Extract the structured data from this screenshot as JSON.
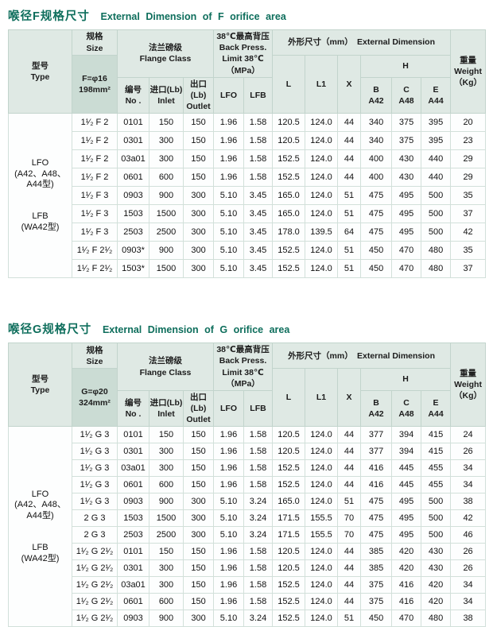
{
  "colors": {
    "title": "#0e6e5c",
    "header_bg": "#dfe9e4",
    "size_cell_bg": "#cbdcd4",
    "border": "#c2d4cc",
    "row_border": "#d2e0da"
  },
  "tables": [
    {
      "title_zh": "喉径F规格尺寸",
      "title_en": "External Dimension of F orifice area",
      "header": {
        "type": "型号\nType",
        "size": "规格\nSize",
        "size_spec": "F=φ16\n198mm²",
        "flange_class": "法兰磅级\nFlange Class",
        "no": "编号\nNo .",
        "inlet": "进口(Lb)\nInlet",
        "outlet": "出口(Lb)\nOutlet",
        "back_press": "38℃最高背压\nBack Press.\nLimit 38℃\n（MPa）",
        "lfo": "LFO",
        "lfb": "LFB",
        "ext_dim": "外形尺寸（mm）　External Dimension",
        "l": "L",
        "l1": "L1",
        "x": "X",
        "h": "H",
        "b": "B\nA42",
        "c": "C\nA48",
        "e": "E\nA44",
        "weight": "重量\nWeight\n（Kg）"
      },
      "type_groups": [
        "LFO\n(A42、A48、\nA44型)",
        "LFB\n(WA42型)"
      ],
      "rows": [
        [
          "1¹⁄₂ F 2",
          "0101",
          "150",
          "150",
          "1.96",
          "1.58",
          "120.5",
          "124.0",
          "44",
          "340",
          "375",
          "395",
          "20"
        ],
        [
          "1¹⁄₂ F 2",
          "0301",
          "300",
          "150",
          "1.96",
          "1.58",
          "120.5",
          "124.0",
          "44",
          "340",
          "375",
          "395",
          "23"
        ],
        [
          "1¹⁄₂ F 2",
          "03a01",
          "300",
          "150",
          "1.96",
          "1.58",
          "152.5",
          "124.0",
          "44",
          "400",
          "430",
          "440",
          "29"
        ],
        [
          "1¹⁄₂ F 2",
          "0601",
          "600",
          "150",
          "1.96",
          "1.58",
          "152.5",
          "124.0",
          "44",
          "400",
          "430",
          "440",
          "29"
        ],
        [
          "1¹⁄₂ F 3",
          "0903",
          "900",
          "300",
          "5.10",
          "3.45",
          "165.0",
          "124.0",
          "51",
          "475",
          "495",
          "500",
          "35"
        ],
        [
          "1¹⁄₂ F 3",
          "1503",
          "1500",
          "300",
          "5.10",
          "3.45",
          "165.0",
          "124.0",
          "51",
          "475",
          "495",
          "500",
          "37"
        ],
        [
          "1¹⁄₂ F 3",
          "2503",
          "2500",
          "300",
          "5.10",
          "3.45",
          "178.0",
          "139.5",
          "64",
          "475",
          "495",
          "500",
          "42"
        ],
        [
          "1¹⁄₂ F 2¹⁄₂",
          "0903*",
          "900",
          "300",
          "5.10",
          "3.45",
          "152.5",
          "124.0",
          "51",
          "450",
          "470",
          "480",
          "35"
        ],
        [
          "1¹⁄₂ F 2¹⁄₂",
          "1503*",
          "1500",
          "300",
          "5.10",
          "3.45",
          "152.5",
          "124.0",
          "51",
          "450",
          "470",
          "480",
          "37"
        ]
      ]
    },
    {
      "title_zh": "喉径G规格尺寸",
      "title_en": "External Dimension of G orifice area",
      "header": {
        "type": "型号\nType",
        "size": "规格\nSize",
        "size_spec": "G=φ20\n324mm²",
        "flange_class": "法兰磅级\nFlange Class",
        "no": "编号\nNo .",
        "inlet": "进口(Lb)\nInlet",
        "outlet": "出口(Lb)\nOutlet",
        "back_press": "38℃最高背压\nBack Press.\nLimit 38℃\n（MPa）",
        "lfo": "LFO",
        "lfb": "LFB",
        "ext_dim": "外形尺寸（mm）　External Dimension",
        "l": "L",
        "l1": "L1",
        "x": "X",
        "h": "H",
        "b": "B\nA42",
        "c": "C\nA48",
        "e": "E\nA44",
        "weight": "重量\nWeight\n（Kg）"
      },
      "type_groups": [
        "LFO\n(A42、A48、\nA44型)",
        "LFB\n(WA42型)"
      ],
      "rows": [
        [
          "1¹⁄₂ G 3",
          "0101",
          "150",
          "150",
          "1.96",
          "1.58",
          "120.5",
          "124.0",
          "44",
          "377",
          "394",
          "415",
          "24"
        ],
        [
          "1¹⁄₂ G 3",
          "0301",
          "300",
          "150",
          "1.96",
          "1.58",
          "120.5",
          "124.0",
          "44",
          "377",
          "394",
          "415",
          "26"
        ],
        [
          "1¹⁄₂ G 3",
          "03a01",
          "300",
          "150",
          "1.96",
          "1.58",
          "152.5",
          "124.0",
          "44",
          "416",
          "445",
          "455",
          "34"
        ],
        [
          "1¹⁄₂ G 3",
          "0601",
          "600",
          "150",
          "1.96",
          "1.58",
          "152.5",
          "124.0",
          "44",
          "416",
          "445",
          "455",
          "34"
        ],
        [
          "1¹⁄₂ G 3",
          "0903",
          "900",
          "300",
          "5.10",
          "3.24",
          "165.0",
          "124.0",
          "51",
          "475",
          "495",
          "500",
          "38"
        ],
        [
          "2 G 3",
          "1503",
          "1500",
          "300",
          "5.10",
          "3.24",
          "171.5",
          "155.5",
          "70",
          "475",
          "495",
          "500",
          "42"
        ],
        [
          "2 G 3",
          "2503",
          "2500",
          "300",
          "5.10",
          "3.24",
          "171.5",
          "155.5",
          "70",
          "475",
          "495",
          "500",
          "46"
        ],
        [
          "1¹⁄₂ G 2¹⁄₂",
          "0101",
          "150",
          "150",
          "1.96",
          "1.58",
          "120.5",
          "124.0",
          "44",
          "385",
          "420",
          "430",
          "26"
        ],
        [
          "1¹⁄₂ G 2¹⁄₂",
          "0301",
          "300",
          "150",
          "1.96",
          "1.58",
          "120.5",
          "124.0",
          "44",
          "385",
          "420",
          "430",
          "26"
        ],
        [
          "1¹⁄₂ G 2¹⁄₂",
          "03a01",
          "300",
          "150",
          "1.96",
          "1.58",
          "152.5",
          "124.0",
          "44",
          "375",
          "416",
          "420",
          "34"
        ],
        [
          "1¹⁄₂ G 2¹⁄₂",
          "0601",
          "600",
          "150",
          "1.96",
          "1.58",
          "152.5",
          "124.0",
          "44",
          "375",
          "416",
          "420",
          "34"
        ],
        [
          "1¹⁄₂ G 2¹⁄₂",
          "0903",
          "900",
          "300",
          "5.10",
          "3.24",
          "152.5",
          "124.0",
          "51",
          "450",
          "470",
          "480",
          "38"
        ]
      ]
    }
  ]
}
